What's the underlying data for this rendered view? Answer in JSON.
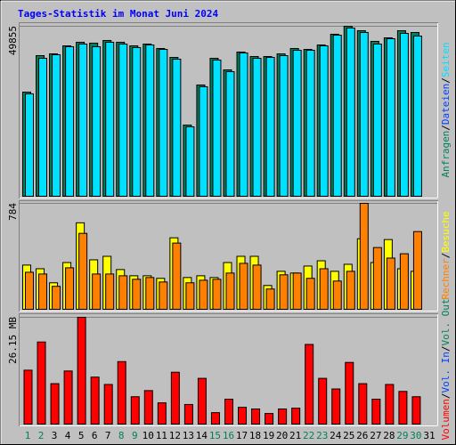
{
  "chart_data": [
    {
      "type": "bar",
      "title": "Tages-Statistik im Monat Juni 2024",
      "ylim": [
        0,
        49855
      ],
      "yticks": [
        49855
      ],
      "series": [
        {
          "color": "#00805c",
          "values": [
            30540,
            41240,
            41760,
            44110,
            45160,
            44900,
            45680,
            45160,
            44110,
            44630,
            43330,
            40720,
            20880,
            32630,
            40460,
            37060,
            42290,
            40980,
            40980,
            41760,
            43330,
            43070,
            44370,
            47510,
            49855,
            48550,
            45420,
            46460,
            48550,
            48030,
            null
          ]
        },
        {
          "color": "#00e0ff",
          "values": [
            30020,
            40460,
            41500,
            43850,
            44630,
            43850,
            45160,
            44630,
            43590,
            44370,
            43070,
            40200,
            20360,
            32110,
            39940,
            36540,
            42020,
            40460,
            40720,
            41240,
            42810,
            42810,
            44110,
            47240,
            49330,
            48030,
            44630,
            46200,
            47770,
            46980,
            null
          ]
        }
      ],
      "legend": [
        {
          "text": "Anfragen",
          "color": "#00805c"
        },
        {
          "text": "Dateien",
          "color": "#0040ff"
        },
        {
          "text": "Seiten",
          "color": "#00e0ff"
        }
      ],
      "legend_separator": "/"
    },
    {
      "type": "bar",
      "ylim": [
        0,
        784
      ],
      "yticks": [
        784
      ],
      "series": [
        {
          "color": "#ffff00",
          "values": [
            327,
            300,
            196,
            346,
            640,
            366,
            392,
            294,
            248,
            248,
            229,
            529,
            235,
            248,
            235,
            346,
            392,
            392,
            176,
            281,
            268,
            320,
            359,
            281,
            333,
            522,
            346,
            516,
            300,
            281,
            null
          ]
        },
        {
          "color": "#ff8000",
          "values": [
            274,
            261,
            170,
            307,
            562,
            261,
            261,
            248,
            222,
            235,
            202,
            490,
            196,
            215,
            222,
            268,
            340,
            327,
            150,
            255,
            268,
            229,
            300,
            209,
            281,
            784,
            457,
            379,
            411,
            575,
            null
          ]
        }
      ],
      "legend": [
        {
          "text": "Rechner",
          "color": "#ff8000"
        },
        {
          "text": "Besuche",
          "color": "#ffff00"
        }
      ],
      "legend_separator": "/"
    },
    {
      "type": "bar",
      "ylim": [
        0,
        26.15
      ],
      "yticks": [
        {
          "value": 26.15,
          "label": "26.15 MB"
        }
      ],
      "series": [
        {
          "color": "#ff0000",
          "values": [
            13.2,
            20.1,
            9.9,
            13.0,
            26.15,
            11.5,
            9.7,
            15.3,
            6.7,
            8.2,
            5.2,
            12.7,
            4.8,
            11.2,
            2.8,
            6.1,
            4.1,
            3.7,
            2.6,
            3.7,
            3.9,
            19.5,
            11.2,
            8.6,
            15.1,
            9.9,
            6.1,
            9.7,
            8.0,
            6.7,
            null
          ]
        }
      ],
      "legend": [
        {
          "text": "Volumen",
          "color": "#ff0000"
        },
        {
          "text": "Vol. In",
          "color": "#0040ff"
        },
        {
          "text": "Vol. Out",
          "color": "#00805c"
        }
      ],
      "legend_separator": "/",
      "categories": [
        "1",
        "2",
        "3",
        "4",
        "5",
        "6",
        "7",
        "8",
        "9",
        "10",
        "11",
        "12",
        "13",
        "14",
        "15",
        "16",
        "17",
        "18",
        "19",
        "20",
        "21",
        "22",
        "23",
        "24",
        "25",
        "26",
        "27",
        "28",
        "29",
        "30",
        "31"
      ],
      "category_colors": [
        "#00805c",
        "#00805c",
        "#000000",
        "#000000",
        "#000000",
        "#000000",
        "#000000",
        "#00805c",
        "#00805c",
        "#000000",
        "#000000",
        "#000000",
        "#000000",
        "#000000",
        "#00805c",
        "#00805c",
        "#000000",
        "#000000",
        "#000000",
        "#000000",
        "#000000",
        "#00805c",
        "#00805c",
        "#000000",
        "#000000",
        "#000000",
        "#000000",
        "#000000",
        "#00805c",
        "#00805c",
        "#000000"
      ]
    }
  ]
}
